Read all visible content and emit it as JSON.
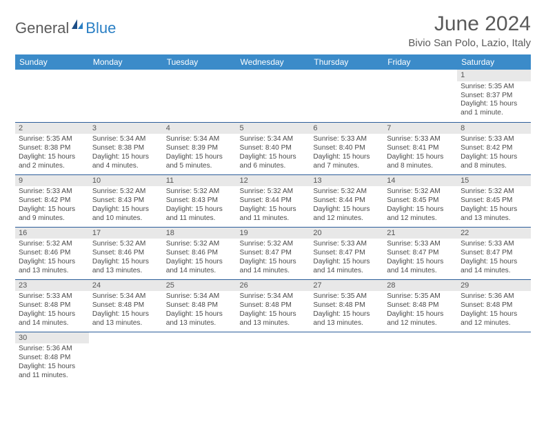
{
  "logo": {
    "part1": "General",
    "part2": "Blue"
  },
  "title": "June 2024",
  "location": "Bivio San Polo, Lazio, Italy",
  "colors": {
    "header_bg": "#3b8bc9",
    "header_text": "#ffffff",
    "daynum_bg": "#e8e8e8",
    "row_border": "#2a5c99",
    "text": "#4a4a4a",
    "logo_gray": "#5a5a5a",
    "logo_blue": "#2a7fc4"
  },
  "typography": {
    "title_fontsize": 30,
    "location_fontsize": 15,
    "dayhdr_fontsize": 12,
    "cell_fontsize": 10.2
  },
  "dayNames": [
    "Sunday",
    "Monday",
    "Tuesday",
    "Wednesday",
    "Thursday",
    "Friday",
    "Saturday"
  ],
  "weeks": [
    [
      null,
      null,
      null,
      null,
      null,
      null,
      {
        "d": "1",
        "sr": "Sunrise: 5:35 AM",
        "ss": "Sunset: 8:37 PM",
        "dl": "Daylight: 15 hours and 1 minute."
      }
    ],
    [
      {
        "d": "2",
        "sr": "Sunrise: 5:35 AM",
        "ss": "Sunset: 8:38 PM",
        "dl": "Daylight: 15 hours and 2 minutes."
      },
      {
        "d": "3",
        "sr": "Sunrise: 5:34 AM",
        "ss": "Sunset: 8:38 PM",
        "dl": "Daylight: 15 hours and 4 minutes."
      },
      {
        "d": "4",
        "sr": "Sunrise: 5:34 AM",
        "ss": "Sunset: 8:39 PM",
        "dl": "Daylight: 15 hours and 5 minutes."
      },
      {
        "d": "5",
        "sr": "Sunrise: 5:34 AM",
        "ss": "Sunset: 8:40 PM",
        "dl": "Daylight: 15 hours and 6 minutes."
      },
      {
        "d": "6",
        "sr": "Sunrise: 5:33 AM",
        "ss": "Sunset: 8:40 PM",
        "dl": "Daylight: 15 hours and 7 minutes."
      },
      {
        "d": "7",
        "sr": "Sunrise: 5:33 AM",
        "ss": "Sunset: 8:41 PM",
        "dl": "Daylight: 15 hours and 8 minutes."
      },
      {
        "d": "8",
        "sr": "Sunrise: 5:33 AM",
        "ss": "Sunset: 8:42 PM",
        "dl": "Daylight: 15 hours and 8 minutes."
      }
    ],
    [
      {
        "d": "9",
        "sr": "Sunrise: 5:33 AM",
        "ss": "Sunset: 8:42 PM",
        "dl": "Daylight: 15 hours and 9 minutes."
      },
      {
        "d": "10",
        "sr": "Sunrise: 5:32 AM",
        "ss": "Sunset: 8:43 PM",
        "dl": "Daylight: 15 hours and 10 minutes."
      },
      {
        "d": "11",
        "sr": "Sunrise: 5:32 AM",
        "ss": "Sunset: 8:43 PM",
        "dl": "Daylight: 15 hours and 11 minutes."
      },
      {
        "d": "12",
        "sr": "Sunrise: 5:32 AM",
        "ss": "Sunset: 8:44 PM",
        "dl": "Daylight: 15 hours and 11 minutes."
      },
      {
        "d": "13",
        "sr": "Sunrise: 5:32 AM",
        "ss": "Sunset: 8:44 PM",
        "dl": "Daylight: 15 hours and 12 minutes."
      },
      {
        "d": "14",
        "sr": "Sunrise: 5:32 AM",
        "ss": "Sunset: 8:45 PM",
        "dl": "Daylight: 15 hours and 12 minutes."
      },
      {
        "d": "15",
        "sr": "Sunrise: 5:32 AM",
        "ss": "Sunset: 8:45 PM",
        "dl": "Daylight: 15 hours and 13 minutes."
      }
    ],
    [
      {
        "d": "16",
        "sr": "Sunrise: 5:32 AM",
        "ss": "Sunset: 8:46 PM",
        "dl": "Daylight: 15 hours and 13 minutes."
      },
      {
        "d": "17",
        "sr": "Sunrise: 5:32 AM",
        "ss": "Sunset: 8:46 PM",
        "dl": "Daylight: 15 hours and 13 minutes."
      },
      {
        "d": "18",
        "sr": "Sunrise: 5:32 AM",
        "ss": "Sunset: 8:46 PM",
        "dl": "Daylight: 15 hours and 14 minutes."
      },
      {
        "d": "19",
        "sr": "Sunrise: 5:32 AM",
        "ss": "Sunset: 8:47 PM",
        "dl": "Daylight: 15 hours and 14 minutes."
      },
      {
        "d": "20",
        "sr": "Sunrise: 5:33 AM",
        "ss": "Sunset: 8:47 PM",
        "dl": "Daylight: 15 hours and 14 minutes."
      },
      {
        "d": "21",
        "sr": "Sunrise: 5:33 AM",
        "ss": "Sunset: 8:47 PM",
        "dl": "Daylight: 15 hours and 14 minutes."
      },
      {
        "d": "22",
        "sr": "Sunrise: 5:33 AM",
        "ss": "Sunset: 8:47 PM",
        "dl": "Daylight: 15 hours and 14 minutes."
      }
    ],
    [
      {
        "d": "23",
        "sr": "Sunrise: 5:33 AM",
        "ss": "Sunset: 8:48 PM",
        "dl": "Daylight: 15 hours and 14 minutes."
      },
      {
        "d": "24",
        "sr": "Sunrise: 5:34 AM",
        "ss": "Sunset: 8:48 PM",
        "dl": "Daylight: 15 hours and 13 minutes."
      },
      {
        "d": "25",
        "sr": "Sunrise: 5:34 AM",
        "ss": "Sunset: 8:48 PM",
        "dl": "Daylight: 15 hours and 13 minutes."
      },
      {
        "d": "26",
        "sr": "Sunrise: 5:34 AM",
        "ss": "Sunset: 8:48 PM",
        "dl": "Daylight: 15 hours and 13 minutes."
      },
      {
        "d": "27",
        "sr": "Sunrise: 5:35 AM",
        "ss": "Sunset: 8:48 PM",
        "dl": "Daylight: 15 hours and 13 minutes."
      },
      {
        "d": "28",
        "sr": "Sunrise: 5:35 AM",
        "ss": "Sunset: 8:48 PM",
        "dl": "Daylight: 15 hours and 12 minutes."
      },
      {
        "d": "29",
        "sr": "Sunrise: 5:36 AM",
        "ss": "Sunset: 8:48 PM",
        "dl": "Daylight: 15 hours and 12 minutes."
      }
    ],
    [
      {
        "d": "30",
        "sr": "Sunrise: 5:36 AM",
        "ss": "Sunset: 8:48 PM",
        "dl": "Daylight: 15 hours and 11 minutes."
      },
      null,
      null,
      null,
      null,
      null,
      null
    ]
  ]
}
